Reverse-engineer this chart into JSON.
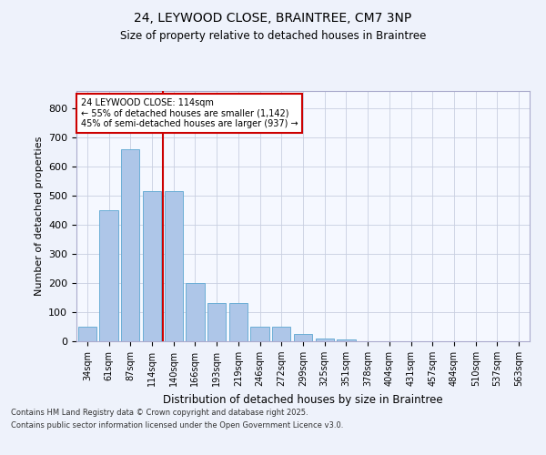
{
  "title_line1": "24, LEYWOOD CLOSE, BRAINTREE, CM7 3NP",
  "title_line2": "Size of property relative to detached houses in Braintree",
  "xlabel": "Distribution of detached houses by size in Braintree",
  "ylabel": "Number of detached properties",
  "categories": [
    "34sqm",
    "61sqm",
    "87sqm",
    "114sqm",
    "140sqm",
    "166sqm",
    "193sqm",
    "219sqm",
    "246sqm",
    "272sqm",
    "299sqm",
    "325sqm",
    "351sqm",
    "378sqm",
    "404sqm",
    "431sqm",
    "457sqm",
    "484sqm",
    "510sqm",
    "537sqm",
    "563sqm"
  ],
  "values": [
    50,
    450,
    660,
    515,
    515,
    200,
    130,
    130,
    50,
    50,
    25,
    10,
    5,
    1,
    0,
    0,
    0,
    0,
    0,
    0,
    0
  ],
  "bar_color": "#aec6e8",
  "bar_edge_color": "#6baed6",
  "vline_x_index": 3,
  "vline_color": "#cc0000",
  "annotation_text": "24 LEYWOOD CLOSE: 114sqm\n← 55% of detached houses are smaller (1,142)\n45% of semi-detached houses are larger (937) →",
  "annotation_box_color": "#ffffff",
  "annotation_box_edge_color": "#cc0000",
  "ylim": [
    0,
    860
  ],
  "yticks": [
    0,
    100,
    200,
    300,
    400,
    500,
    600,
    700,
    800
  ],
  "footer_line1": "Contains HM Land Registry data © Crown copyright and database right 2025.",
  "footer_line2": "Contains public sector information licensed under the Open Government Licence v3.0.",
  "bg_color": "#eef2fb",
  "plot_bg_color": "#f5f8ff",
  "grid_color": "#c8cfe0"
}
